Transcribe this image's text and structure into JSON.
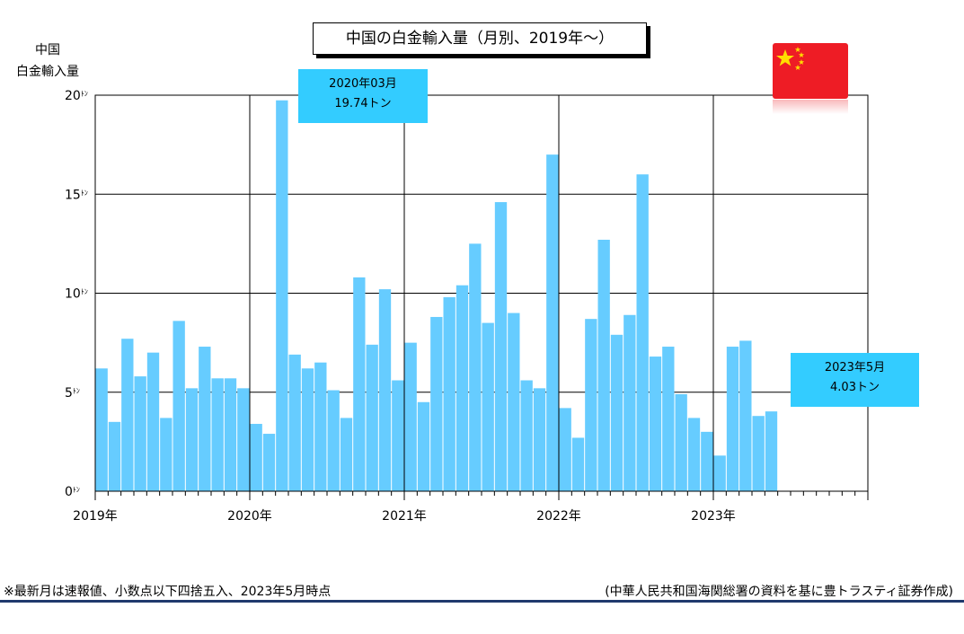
{
  "chart_data": {
    "type": "bar",
    "title": "中国の白金輸入量（月別、2019年～）",
    "ylabel": "中国\n白金輸入量",
    "ylim": [
      0,
      20
    ],
    "yticks": [
      {
        "value": 0,
        "label": "0"
      },
      {
        "value": 5,
        "label": "5"
      },
      {
        "value": 10,
        "label": "10"
      },
      {
        "value": 15,
        "label": "15"
      },
      {
        "value": 20,
        "label": "20"
      }
    ],
    "ytick_unit": "ﾄﾝ",
    "x_start": "2019-01",
    "x_months_total": 60,
    "xtick_labels": [
      "2019年",
      "2020年",
      "2021年",
      "2022年",
      "2023年"
    ],
    "grid": true,
    "bar_color": "#66ccff",
    "values": [
      6.2,
      3.5,
      7.7,
      5.8,
      7.0,
      3.7,
      8.6,
      5.2,
      7.3,
      5.7,
      5.7,
      5.2,
      3.4,
      2.9,
      19.74,
      6.9,
      6.2,
      6.5,
      5.1,
      3.7,
      10.8,
      7.4,
      10.2,
      5.6,
      7.5,
      4.5,
      8.8,
      9.8,
      10.4,
      12.5,
      8.5,
      14.6,
      9.0,
      5.6,
      5.2,
      17.0,
      4.2,
      2.7,
      8.7,
      12.7,
      7.9,
      8.9,
      16.0,
      6.8,
      7.3,
      4.9,
      3.7,
      3.0,
      1.8,
      7.3,
      7.6,
      3.8,
      4.03
    ],
    "annotations": [
      {
        "date": "2020年03月",
        "value": "19.74トン"
      },
      {
        "date": "2023年5月",
        "value": "4.03トン"
      }
    ]
  },
  "notes": {
    "left": "※最新月は速報値、小数点以下四捨五入、2023年5月時点",
    "right": "(中華人民共和国海関総署の資料を基に豊トラスティ証券作成)"
  },
  "flag_name": "china-flag"
}
